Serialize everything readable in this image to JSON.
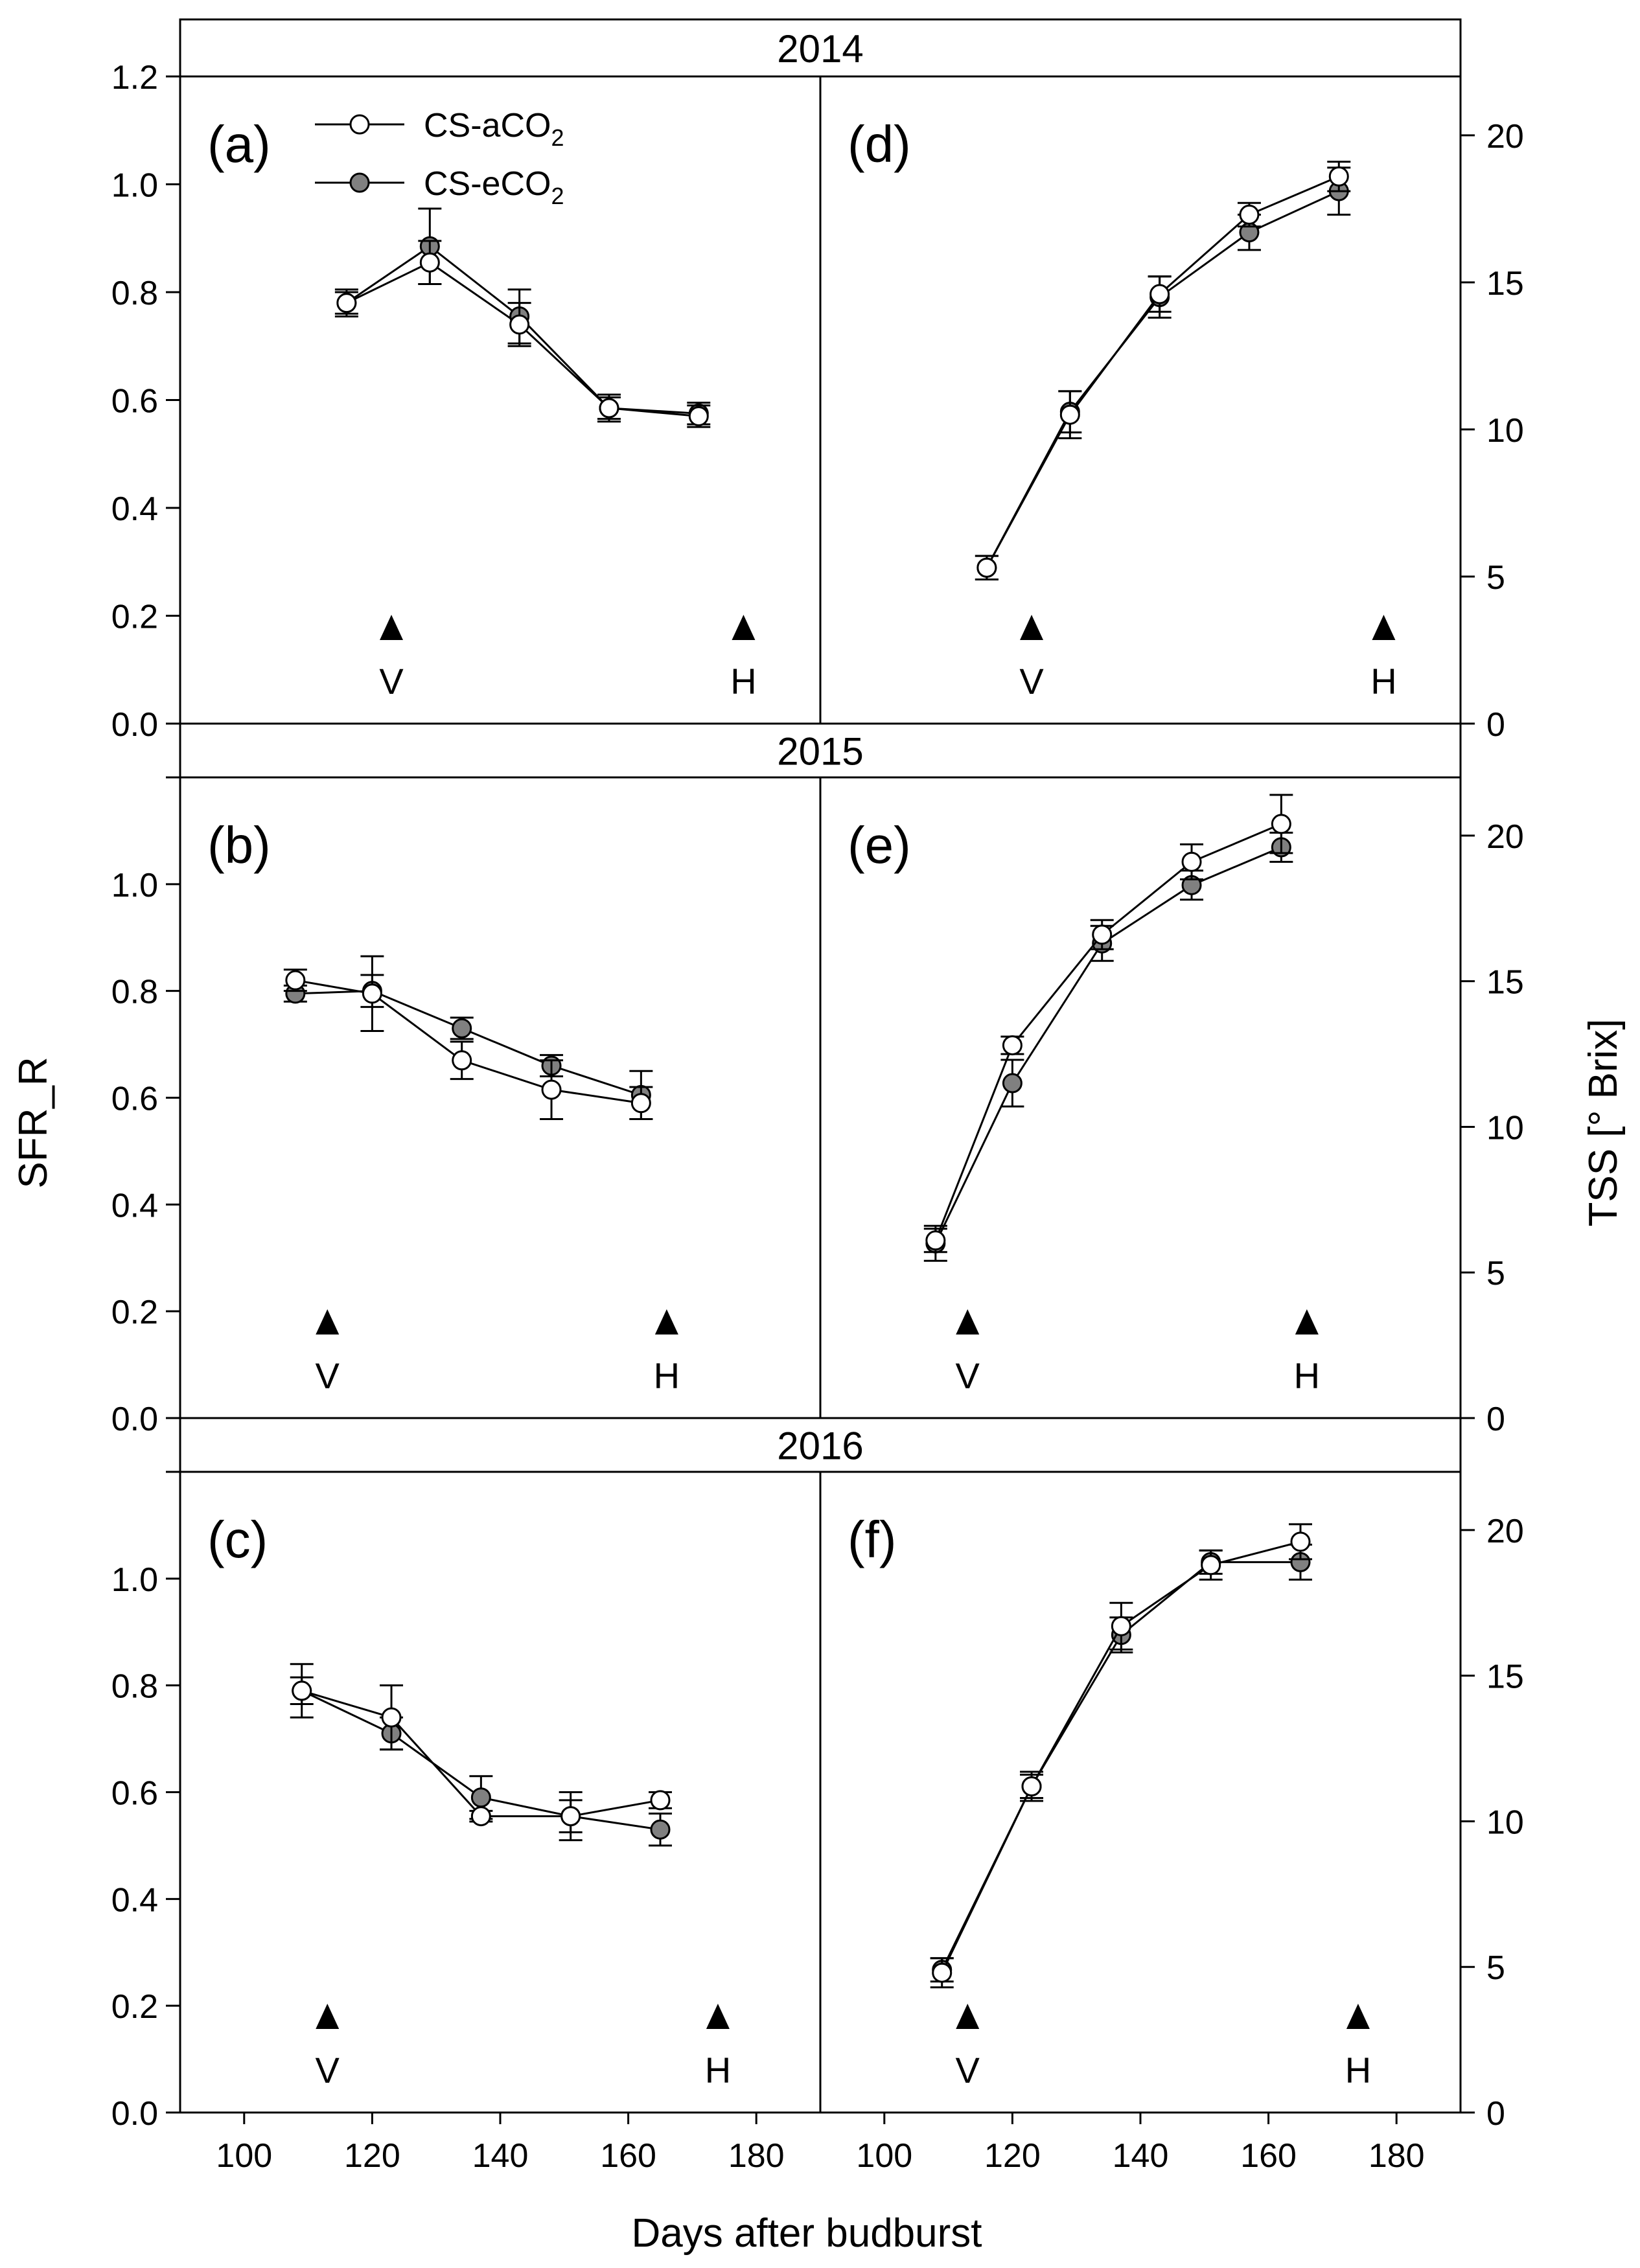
{
  "colors": {
    "eco2_fill": "#808080",
    "aco2_fill": "#ffffff",
    "stroke": "#000000"
  },
  "chart_data": {
    "type": "line",
    "xlabel": "Days after budburst",
    "ylabel_left": "SFR_R",
    "ylabel_right": "TSS [° Brix]",
    "xlim": [
      90,
      190
    ],
    "xticks": [
      100,
      120,
      140,
      160,
      180
    ],
    "left_ylim": [
      0,
      1.2
    ],
    "left_yticks": [
      0.0,
      0.2,
      0.4,
      0.6,
      0.8,
      1.0,
      1.2
    ],
    "right_ylim": [
      0,
      22
    ],
    "right_yticks": [
      0,
      5,
      10,
      15,
      20
    ],
    "legend": [
      "CS-aCO2",
      "CS-eCO2"
    ],
    "legend_display": {
      "prefix_a": "CS-aCO",
      "prefix_e": "CS-eCO",
      "subscript": "2"
    },
    "years": [
      {
        "year": "2014",
        "left": {
          "label": "(a)",
          "markers": [
            {
              "x": 123,
              "text": "V"
            },
            {
              "x": 178,
              "text": "H"
            }
          ],
          "series": [
            {
              "name": "CS-aCO2",
              "x": [
                116,
                129,
                143,
                157,
                171
              ],
              "y": [
                0.78,
                0.855,
                0.74,
                0.585,
                0.57
              ],
              "err": [
                0.02,
                0.04,
                0.04,
                0.02,
                0.02
              ]
            },
            {
              "name": "CS-eCO2",
              "x": [
                116,
                129,
                143,
                157,
                171
              ],
              "y": [
                0.78,
                0.885,
                0.755,
                0.585,
                0.575
              ],
              "err": [
                0.025,
                0.07,
                0.05,
                0.025,
                0.02
              ]
            }
          ]
        },
        "right": {
          "label": "(d)",
          "markers": [
            {
              "x": 123,
              "text": "V"
            },
            {
              "x": 178,
              "text": "H"
            }
          ],
          "series": [
            {
              "name": "CS-aCO2",
              "x": [
                116,
                129,
                143,
                157,
                171
              ],
              "y": [
                5.3,
                10.5,
                14.6,
                17.3,
                18.6
              ],
              "err": [
                0.4,
                0.8,
                0.6,
                0.4,
                0.5
              ]
            },
            {
              "name": "CS-eCO2",
              "x": [
                116,
                129,
                143,
                157,
                171
              ],
              "y": [
                5.3,
                10.6,
                14.5,
                16.7,
                18.1
              ],
              "err": [
                0.4,
                0.7,
                0.7,
                0.6,
                0.8
              ]
            }
          ]
        }
      },
      {
        "year": "2015",
        "left": {
          "label": "(b)",
          "markers": [
            {
              "x": 113,
              "text": "V"
            },
            {
              "x": 166,
              "text": "H"
            }
          ],
          "series": [
            {
              "name": "CS-aCO2",
              "x": [
                108,
                120,
                134,
                148,
                162
              ],
              "y": [
                0.82,
                0.795,
                0.67,
                0.615,
                0.59
              ],
              "err": [
                0.02,
                0.07,
                0.035,
                0.055,
                0.03
              ]
            },
            {
              "name": "CS-eCO2",
              "x": [
                108,
                120,
                134,
                148,
                162
              ],
              "y": [
                0.795,
                0.8,
                0.73,
                0.66,
                0.605
              ],
              "err": [
                0.015,
                0.03,
                0.02,
                0.02,
                0.045
              ]
            }
          ]
        },
        "right": {
          "label": "(e)",
          "markers": [
            {
              "x": 113,
              "text": "V"
            },
            {
              "x": 166,
              "text": "H"
            }
          ],
          "series": [
            {
              "name": "CS-aCO2",
              "x": [
                108,
                120,
                134,
                148,
                162
              ],
              "y": [
                6.1,
                12.8,
                16.6,
                19.1,
                20.4
              ],
              "err": [
                0.4,
                0.3,
                0.5,
                0.6,
                1.0
              ]
            },
            {
              "name": "CS-eCO2",
              "x": [
                108,
                120,
                134,
                148,
                162
              ],
              "y": [
                6.0,
                11.5,
                16.3,
                18.3,
                19.6
              ],
              "err": [
                0.6,
                0.8,
                0.6,
                0.5,
                0.5
              ]
            }
          ]
        }
      },
      {
        "year": "2016",
        "left": {
          "label": "(c)",
          "markers": [
            {
              "x": 113,
              "text": "V"
            },
            {
              "x": 174,
              "text": "H"
            }
          ],
          "series": [
            {
              "name": "CS-aCO2",
              "x": [
                109,
                123,
                137,
                151,
                165
              ],
              "y": [
                0.79,
                0.74,
                0.555,
                0.555,
                0.585
              ],
              "err": [
                0.05,
                0.06,
                0.01,
                0.03,
                0.015
              ]
            },
            {
              "name": "CS-eCO2",
              "x": [
                109,
                123,
                137,
                151,
                165
              ],
              "y": [
                0.79,
                0.71,
                0.59,
                0.555,
                0.53
              ],
              "err": [
                0.025,
                0.03,
                0.04,
                0.045,
                0.03
              ]
            }
          ]
        },
        "right": {
          "label": "(f)",
          "markers": [
            {
              "x": 113,
              "text": "V"
            },
            {
              "x": 174,
              "text": "H"
            }
          ],
          "series": [
            {
              "name": "CS-aCO2",
              "x": [
                109,
                123,
                137,
                151,
                165
              ],
              "y": [
                4.8,
                11.2,
                16.7,
                18.8,
                19.6
              ],
              "err": [
                0.5,
                0.5,
                0.8,
                0.5,
                0.6
              ]
            },
            {
              "name": "CS-eCO2",
              "x": [
                109,
                123,
                137,
                151,
                165
              ],
              "y": [
                4.9,
                11.2,
                16.4,
                18.9,
                18.9
              ],
              "err": [
                0.4,
                0.4,
                0.6,
                0.4,
                0.6
              ]
            }
          ]
        }
      }
    ]
  }
}
